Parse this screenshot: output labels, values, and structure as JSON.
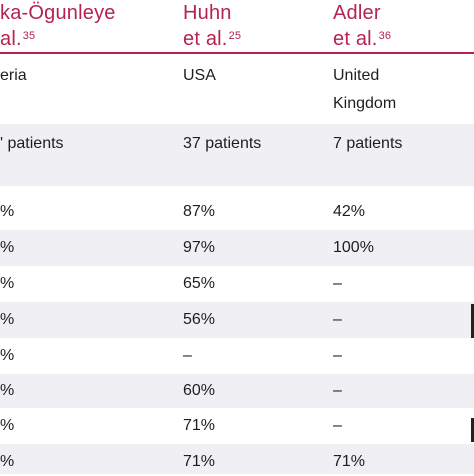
{
  "headers": {
    "col1_line1": "ka-Ögunleye",
    "col1_line2": "al.",
    "col1_ref": "35",
    "col2_line1": "Huhn",
    "col2_line2": "et al.",
    "col2_ref": "25",
    "col3_line1": "Adler",
    "col3_line2": "et al.",
    "col3_ref": "36"
  },
  "colors": {
    "accent": "#b5234f",
    "shade": "#efeff4"
  },
  "rows": [
    {
      "c0": "eria",
      "c1": "USA",
      "c2": "United",
      "c2b": "Kingdom"
    },
    {
      "c0": "' patients",
      "c1": "37 patients",
      "c2": "7 patients"
    },
    {
      "c0": "",
      "c1": "",
      "c2": ""
    },
    {
      "c0": "%",
      "c1": "87%",
      "c2": "42%"
    },
    {
      "c0": "%",
      "c1": "97%",
      "c2": "100%"
    },
    {
      "c0": "%",
      "c1": "65%",
      "c2": "–"
    },
    {
      "c0": "%",
      "c1": "56%",
      "c2": "–"
    },
    {
      "c0": "%",
      "c1": "–",
      "c2": "–"
    },
    {
      "c0": "%",
      "c1": "60%",
      "c2": "–"
    },
    {
      "c0": "%",
      "c1": "71%",
      "c2": "–"
    },
    {
      "c0": "%",
      "c1": "71%",
      "c2": "71%"
    }
  ]
}
